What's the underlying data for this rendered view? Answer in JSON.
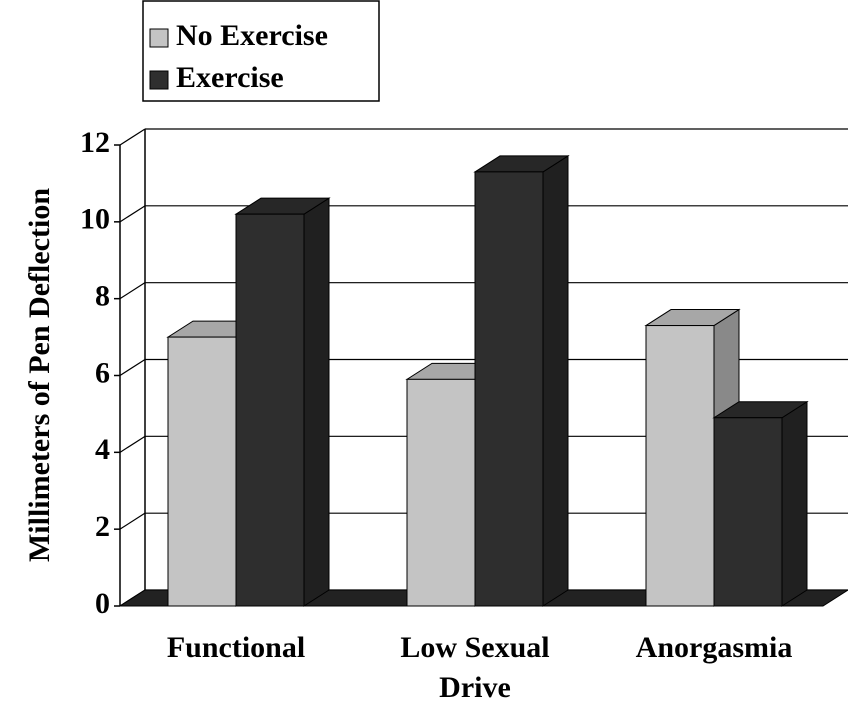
{
  "chart_data": {
    "type": "bar3d",
    "ylabel": "Millimeters of Pen Deflection",
    "categories": [
      "Functional",
      "Low Sexual Drive",
      "Anorgasmia"
    ],
    "series": [
      {
        "name": "No Exercise",
        "color": "#c4c4c4",
        "values": [
          7.0,
          5.9,
          7.3
        ]
      },
      {
        "name": "Exercise",
        "color": "#2e2e2e",
        "values": [
          10.2,
          11.3,
          4.9
        ]
      }
    ],
    "ylim": [
      0,
      12
    ],
    "yticks": [
      0,
      2,
      4,
      6,
      8,
      10,
      12
    ],
    "grid": true,
    "legend": "top-left"
  }
}
